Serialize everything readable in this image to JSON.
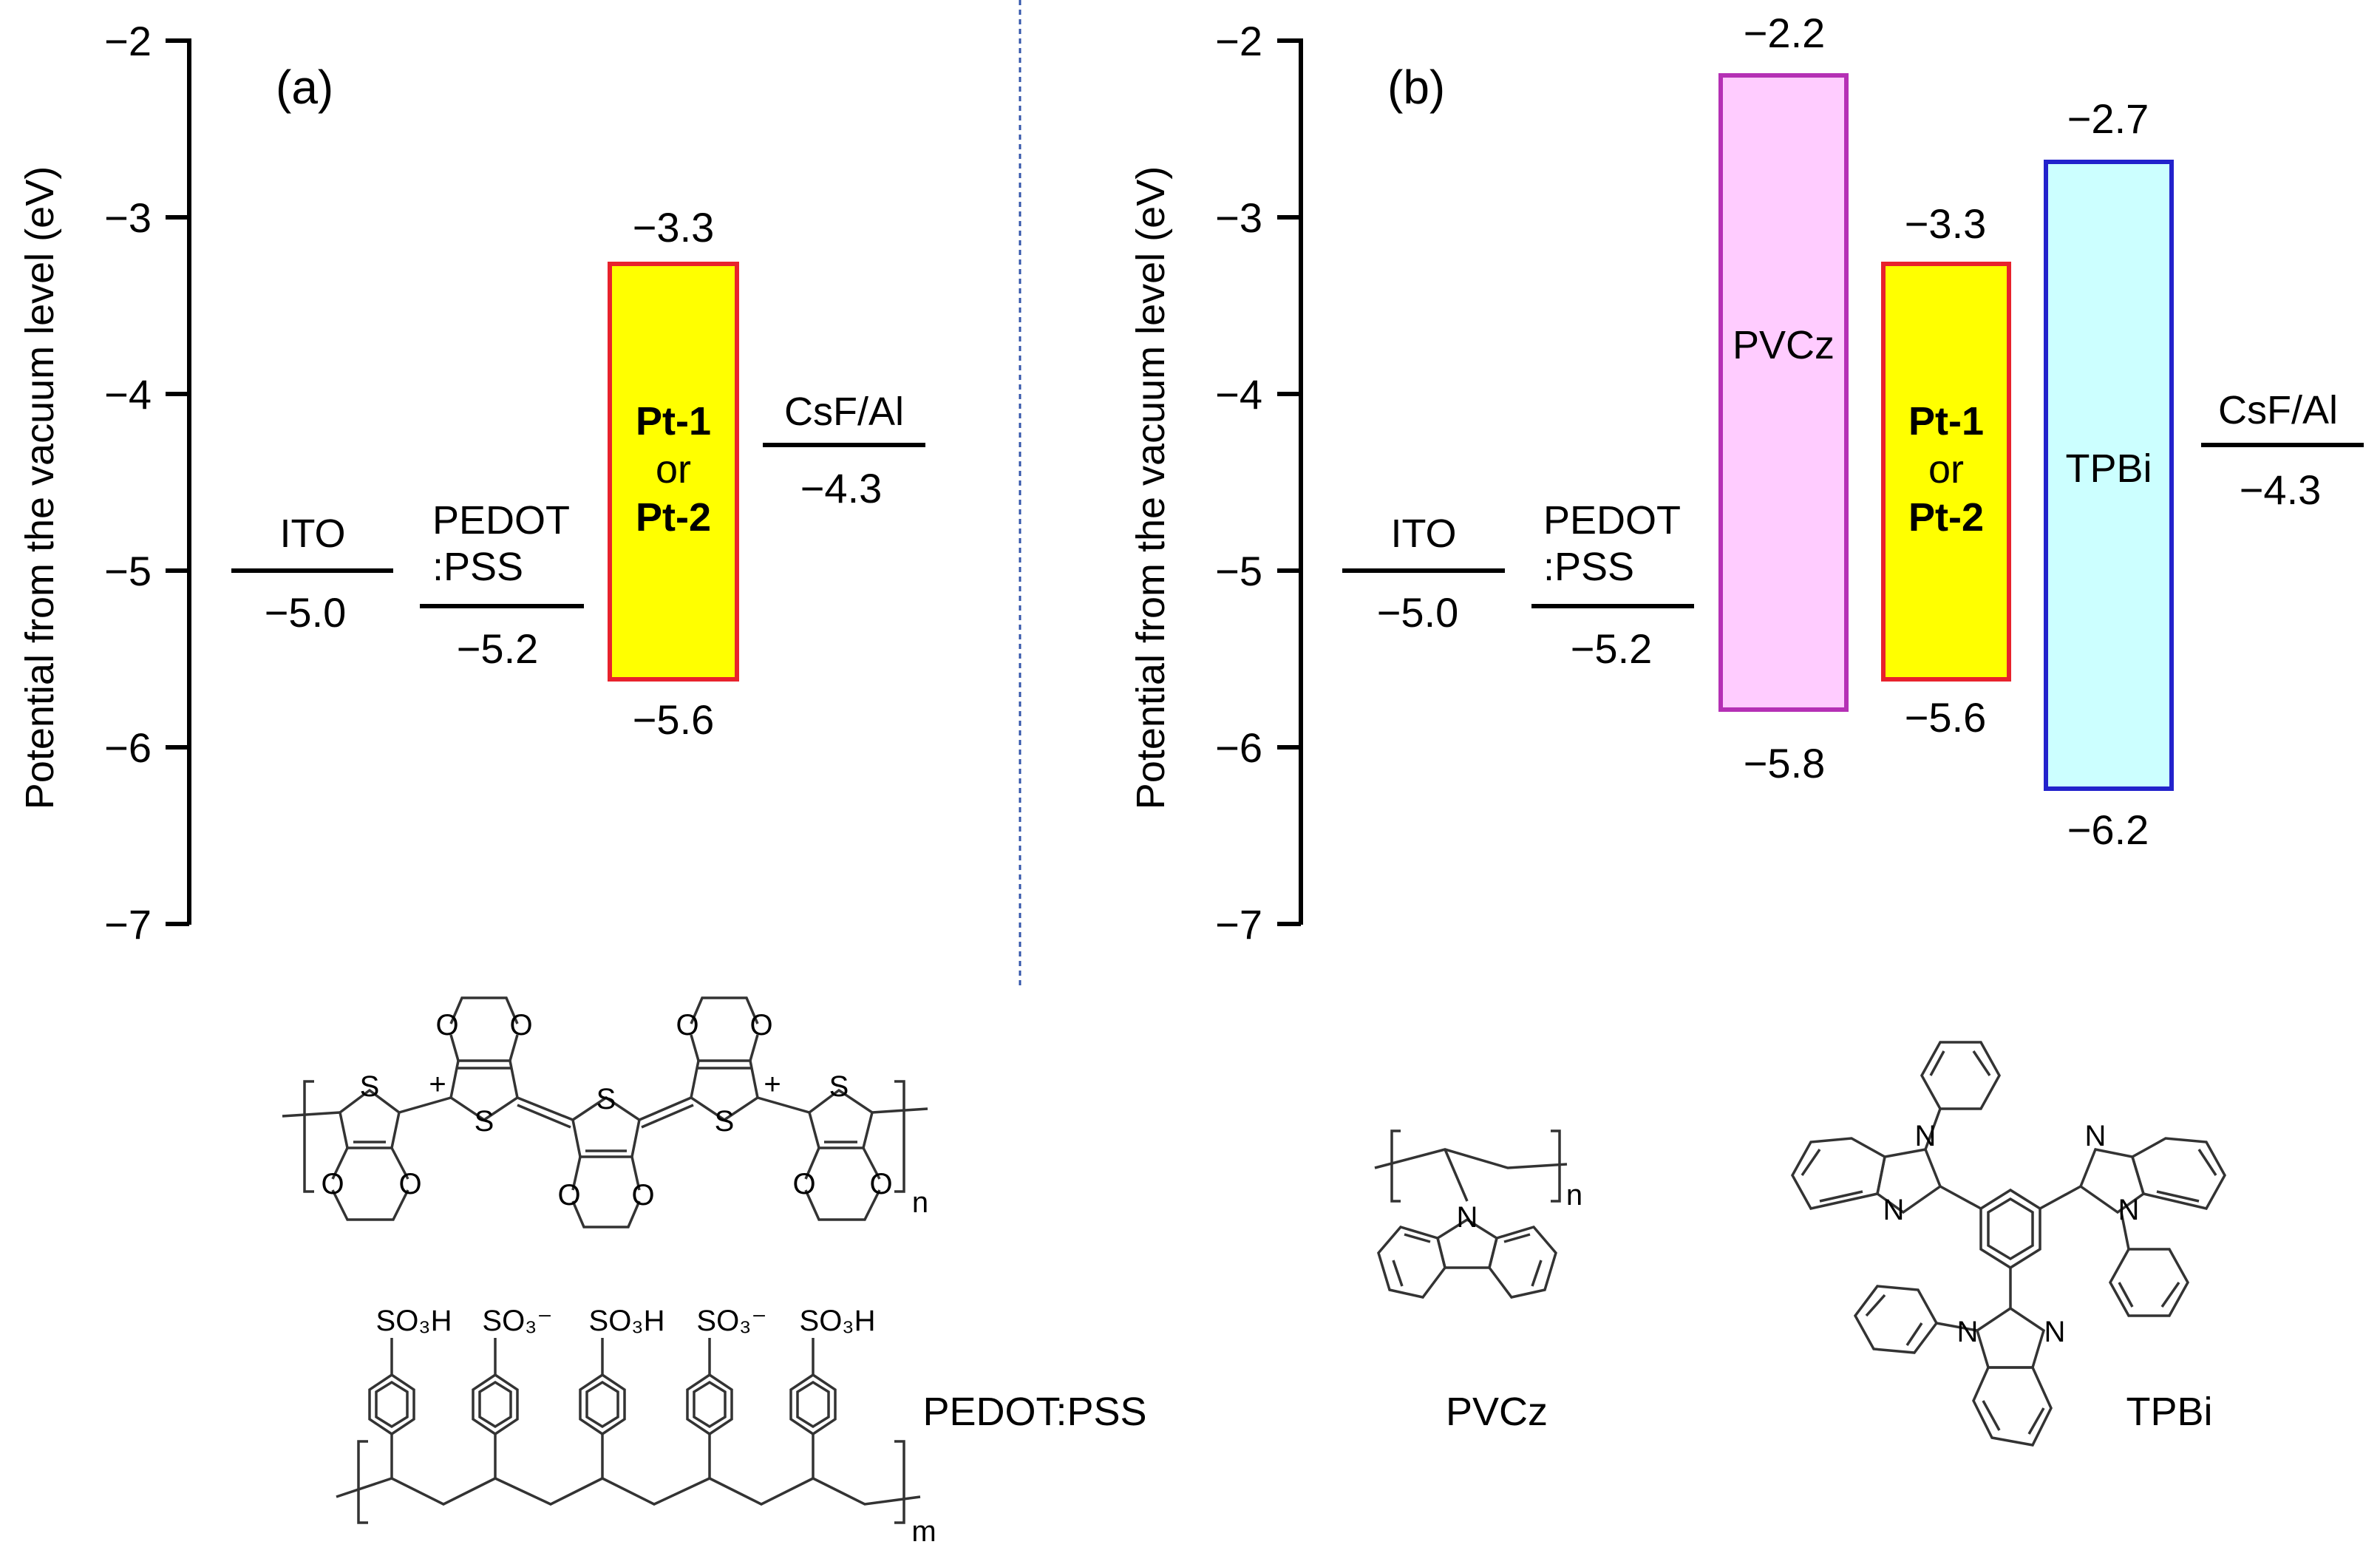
{
  "panels": {
    "a": {
      "letter": "(a)",
      "ylabel": "Potential from the vacuum level (eV)",
      "ticks": [
        "−2",
        "−3",
        "−4",
        "−5",
        "−6",
        "−7"
      ],
      "levels": {
        "ito": {
          "name": "ITO",
          "value": -5.0,
          "label": "−5.0"
        },
        "pedot": {
          "name1": "PEDOT",
          "name2": ":PSS",
          "value": -5.2,
          "label": "−5.2"
        },
        "pt": {
          "name1": "Pt-1",
          "name2": "or",
          "name3": "Pt-2",
          "lumo": -3.3,
          "homo": -5.6,
          "lumo_label": "−3.3",
          "homo_label": "−5.6",
          "fill": "#ffff00",
          "stroke": "#e8222c"
        },
        "csf": {
          "name": "CsF/Al",
          "value": -4.3,
          "label": "−4.3"
        }
      }
    },
    "b": {
      "letter": "(b)",
      "ylabel": "Potential from the vacuum level (eV)",
      "ticks": [
        "−2",
        "−3",
        "−4",
        "−5",
        "−6",
        "−7"
      ],
      "levels": {
        "ito": {
          "name": "ITO",
          "value": -5.0,
          "label": "−5.0"
        },
        "pedot": {
          "name1": "PEDOT",
          "name2": ":PSS",
          "value": -5.2,
          "label": "−5.2"
        },
        "pvcz": {
          "name": "PVCz",
          "lumo": -2.2,
          "homo": -5.8,
          "lumo_label": "−2.2",
          "homo_label": "−5.8",
          "fill": "#ffccff",
          "stroke": "#b530b5"
        },
        "pt": {
          "name1": "Pt-1",
          "name2": "or",
          "name3": "Pt-2",
          "lumo": -3.3,
          "homo": -5.6,
          "lumo_label": "−3.3",
          "homo_label": "−5.6",
          "fill": "#ffff00",
          "stroke": "#e8222c"
        },
        "tpbi": {
          "name": "TPBi",
          "lumo": -2.7,
          "homo": -6.2,
          "lumo_label": "−2.7",
          "homo_label": "−6.2",
          "fill": "#ccffff",
          "stroke": "#2222cc"
        },
        "csf": {
          "name": "CsF/Al",
          "value": -4.3,
          "label": "−4.3"
        }
      }
    }
  },
  "axis": {
    "min": -7,
    "max": -2
  },
  "structures": {
    "pedot_name": "PEDOT:PSS",
    "pvcz_name": "PVCz",
    "tpbi_name": "TPBi",
    "atoms": {
      "S": "S",
      "O": "O",
      "N": "N",
      "plus": "+",
      "so3h": "SO₃H",
      "so3m": "SO₃⁻",
      "n": "n",
      "m": "m"
    }
  },
  "colors": {
    "axis": "#000000",
    "divider": "#3355aa"
  }
}
